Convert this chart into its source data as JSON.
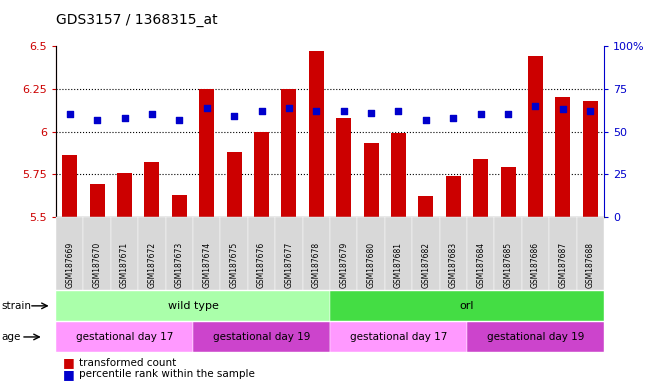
{
  "title": "GDS3157 / 1368315_at",
  "samples": [
    "GSM187669",
    "GSM187670",
    "GSM187671",
    "GSM187672",
    "GSM187673",
    "GSM187674",
    "GSM187675",
    "GSM187676",
    "GSM187677",
    "GSM187678",
    "GSM187679",
    "GSM187680",
    "GSM187681",
    "GSM187682",
    "GSM187683",
    "GSM187684",
    "GSM187685",
    "GSM187686",
    "GSM187687",
    "GSM187688"
  ],
  "transformed_count": [
    5.86,
    5.69,
    5.76,
    5.82,
    5.63,
    6.25,
    5.88,
    6.0,
    6.25,
    6.47,
    6.08,
    5.93,
    5.99,
    5.62,
    5.74,
    5.84,
    5.79,
    6.44,
    6.2,
    6.18
  ],
  "percentile_rank": [
    60,
    57,
    58,
    60,
    57,
    64,
    59,
    62,
    64,
    62,
    62,
    61,
    62,
    57,
    58,
    60,
    60,
    65,
    63,
    62
  ],
  "ylim_left": [
    5.5,
    6.5
  ],
  "ylim_right": [
    0,
    100
  ],
  "yticks_left": [
    5.5,
    5.75,
    6.0,
    6.25,
    6.5
  ],
  "yticks_right": [
    0,
    25,
    50,
    75,
    100
  ],
  "grid_values": [
    5.75,
    6.0,
    6.25
  ],
  "bar_color": "#cc0000",
  "dot_color": "#0000cc",
  "bar_bottom": 5.5,
  "strain_groups": [
    {
      "label": "wild type",
      "start": 0,
      "end": 9,
      "color": "#aaffaa"
    },
    {
      "label": "orl",
      "start": 10,
      "end": 19,
      "color": "#44dd44"
    }
  ],
  "age_groups": [
    {
      "label": "gestational day 17",
      "start": 0,
      "end": 4,
      "color": "#ff99ff"
    },
    {
      "label": "gestational day 19",
      "start": 5,
      "end": 9,
      "color": "#dd55dd"
    },
    {
      "label": "gestational day 17",
      "start": 10,
      "end": 14,
      "color": "#ff99ff"
    },
    {
      "label": "gestational day 19",
      "start": 15,
      "end": 19,
      "color": "#dd55dd"
    }
  ],
  "legend_items": [
    {
      "label": "transformed count",
      "color": "#cc0000"
    },
    {
      "label": "percentile rank within the sample",
      "color": "#0000cc"
    }
  ]
}
